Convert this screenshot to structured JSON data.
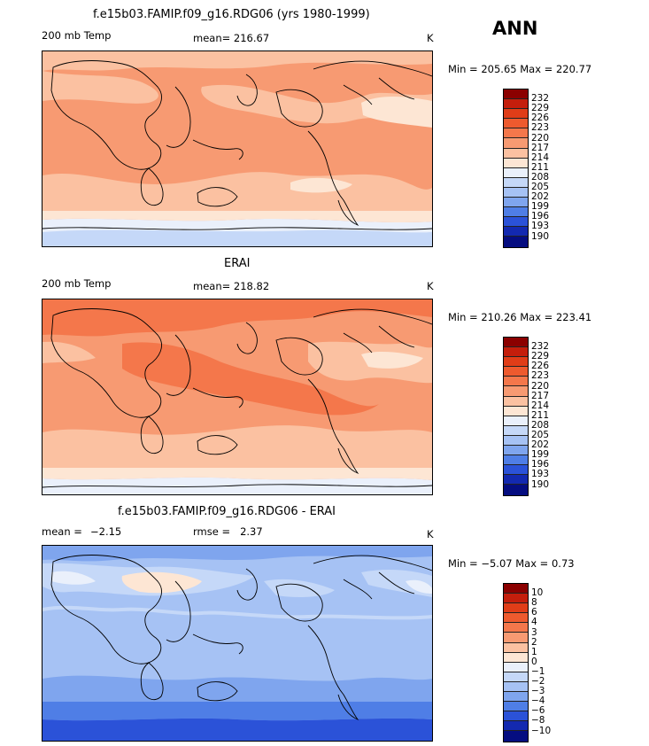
{
  "season": "ANN",
  "units": "K",
  "panels": [
    {
      "id": "model",
      "title": "f.e15b03.FAMIP.f09_g16.RDG06 (yrs 1980-1999)",
      "left_label": "200 mb Temp",
      "stat1_label": "mean=",
      "stat1_value": "216.67",
      "stat2_label": "",
      "stat2_value": "",
      "units": "K",
      "range_text": "Min = 205.65 Max = 220.77",
      "colorbar": {
        "labels": [
          "232",
          "229",
          "226",
          "223",
          "220",
          "217",
          "214",
          "211",
          "208",
          "205",
          "202",
          "199",
          "196",
          "193",
          "190"
        ],
        "colors": [
          "#8b0000",
          "#c41e0c",
          "#e03d18",
          "#ee5a2e",
          "#f4774b",
          "#f79a72",
          "#fbc1a1",
          "#fde6d4",
          "#eaf0fb",
          "#c5d8f8",
          "#a6c2f4",
          "#7fa5ee",
          "#4f7ee6",
          "#2b52d8",
          "#1329b0",
          "#050d80"
        ]
      },
      "data_range": [
        205.65,
        220.77
      ]
    },
    {
      "id": "obs",
      "title": "ERAI",
      "left_label": "200 mb Temp",
      "stat1_label": "mean=",
      "stat1_value": "218.82",
      "stat2_label": "",
      "stat2_value": "",
      "units": "K",
      "range_text": "Min = 210.26 Max = 223.41",
      "colorbar": {
        "labels": [
          "232",
          "229",
          "226",
          "223",
          "220",
          "217",
          "214",
          "211",
          "208",
          "205",
          "202",
          "199",
          "196",
          "193",
          "190"
        ],
        "colors": [
          "#8b0000",
          "#c41e0c",
          "#e03d18",
          "#ee5a2e",
          "#f4774b",
          "#f79a72",
          "#fbc1a1",
          "#fde6d4",
          "#eaf0fb",
          "#c5d8f8",
          "#a6c2f4",
          "#7fa5ee",
          "#4f7ee6",
          "#2b52d8",
          "#1329b0",
          "#050d80"
        ]
      },
      "data_range": [
        210.26,
        223.41
      ]
    },
    {
      "id": "diff",
      "title": "f.e15b03.FAMIP.f09_g16.RDG06 - ERAI",
      "left_label": "mean =",
      "stat1_label": "",
      "stat1_value": "−2.15",
      "stat2_label": "rmse =",
      "stat2_value": "2.37",
      "units": "K",
      "range_text": "Min =  −5.07 Max =   0.73",
      "colorbar": {
        "labels": [
          "10",
          "8",
          "6",
          "4",
          "3",
          "2",
          "1",
          "0",
          "−1",
          "−2",
          "−3",
          "−4",
          "−6",
          "−8",
          "−10"
        ],
        "colors": [
          "#8b0000",
          "#c41e0c",
          "#e03d18",
          "#ee5a2e",
          "#f4774b",
          "#f79a72",
          "#fbc1a1",
          "#fde6d4",
          "#eaf0fb",
          "#c5d8f8",
          "#a6c2f4",
          "#7fa5ee",
          "#4f7ee6",
          "#2b52d8",
          "#1329b0",
          "#050d80"
        ]
      },
      "data_range": [
        -5.07,
        0.73
      ]
    }
  ]
}
